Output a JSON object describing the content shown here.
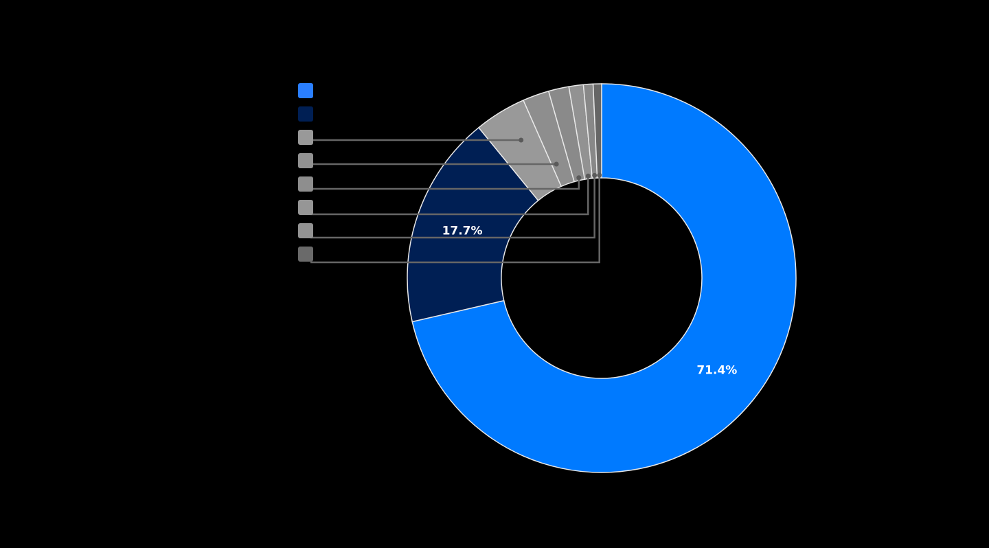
{
  "chart_data": {
    "type": "pie",
    "variant": "donut",
    "title": "",
    "legend_position": "left",
    "center": [
      876,
      405
    ],
    "outer_radius": 283,
    "inner_radius": 146,
    "slices": [
      {
        "name": "",
        "value": 71.4,
        "label": "71.4%",
        "color": "#007AFF",
        "show_label": true
      },
      {
        "name": "",
        "value": 17.7,
        "label": "17.7%",
        "color": "#001F54",
        "show_label": true
      },
      {
        "name": "",
        "value": 4.3,
        "label": "",
        "color": "#999999",
        "show_label": false
      },
      {
        "name": "",
        "value": 2.2,
        "label": "",
        "color": "#8E8E8E",
        "show_label": false
      },
      {
        "name": "",
        "value": 1.7,
        "label": "",
        "color": "#8A8A8A",
        "show_label": false
      },
      {
        "name": "",
        "value": 1.2,
        "label": "",
        "color": "#929292",
        "show_label": false
      },
      {
        "name": "",
        "value": 0.8,
        "label": "",
        "color": "#888888",
        "show_label": false
      },
      {
        "name": "",
        "value": 0.7,
        "label": "",
        "color": "#666666",
        "show_label": false
      }
    ],
    "legend": [
      {
        "color": "#2A7FFF",
        "label": ""
      },
      {
        "color": "#001F54",
        "label": ""
      },
      {
        "color": "#999999",
        "label": ""
      },
      {
        "color": "#929292",
        "label": ""
      },
      {
        "color": "#8E8E8E",
        "label": ""
      },
      {
        "color": "#969696",
        "label": ""
      },
      {
        "color": "#939393",
        "label": ""
      },
      {
        "color": "#6A6A6A",
        "label": ""
      }
    ]
  },
  "style": {
    "background": "#000000",
    "slice_separator": "#E8E8E8",
    "leader_line": "#666666",
    "leader_dot": "#5A5A5A"
  }
}
